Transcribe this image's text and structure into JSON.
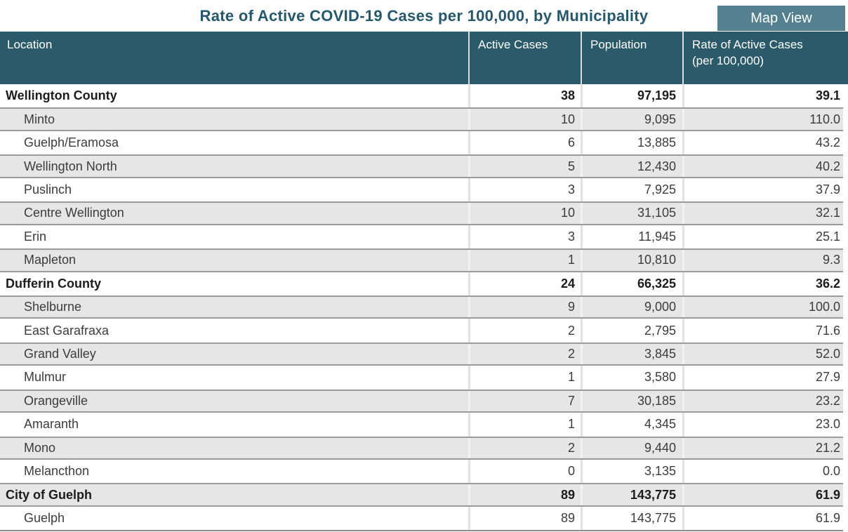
{
  "title": "Rate of Active COVID-19 Cases per 100,000, by Municipality",
  "toolbar": {
    "map_view_label": "Map View"
  },
  "colors": {
    "title_text": "#26586D",
    "header_bg": "#2B5A6B",
    "header_text": "#FFFFFF",
    "button_bg": "#54808F",
    "button_text": "#FFFFFF",
    "stripe_bg": "#E6E6E6",
    "stripe_border": "#9B9B9B",
    "table_bottom_border": "#8C8C8C"
  },
  "table": {
    "columns": [
      {
        "label": "Location"
      },
      {
        "label": "Active Cases"
      },
      {
        "label": "Population"
      },
      {
        "label": "Rate of Active Cases",
        "label_line2": "(per 100,000)"
      }
    ],
    "rows": [
      {
        "location": "Wellington County",
        "active_cases": "38",
        "population": "97,195",
        "rate": "39.1",
        "is_summary": true,
        "shaded": false
      },
      {
        "location": "Minto",
        "active_cases": "10",
        "population": "9,095",
        "rate": "110.0",
        "is_summary": false,
        "shaded": true
      },
      {
        "location": "Guelph/Eramosa",
        "active_cases": "6",
        "population": "13,885",
        "rate": "43.2",
        "is_summary": false,
        "shaded": false
      },
      {
        "location": "Wellington North",
        "active_cases": "5",
        "population": "12,430",
        "rate": "40.2",
        "is_summary": false,
        "shaded": true
      },
      {
        "location": "Puslinch",
        "active_cases": "3",
        "population": "7,925",
        "rate": "37.9",
        "is_summary": false,
        "shaded": false
      },
      {
        "location": "Centre Wellington",
        "active_cases": "10",
        "population": "31,105",
        "rate": "32.1",
        "is_summary": false,
        "shaded": true
      },
      {
        "location": "Erin",
        "active_cases": "3",
        "population": "11,945",
        "rate": "25.1",
        "is_summary": false,
        "shaded": false
      },
      {
        "location": "Mapleton",
        "active_cases": "1",
        "population": "10,810",
        "rate": "9.3",
        "is_summary": false,
        "shaded": true
      },
      {
        "location": "Dufferin County",
        "active_cases": "24",
        "population": "66,325",
        "rate": "36.2",
        "is_summary": true,
        "shaded": false
      },
      {
        "location": "Shelburne",
        "active_cases": "9",
        "population": "9,000",
        "rate": "100.0",
        "is_summary": false,
        "shaded": true
      },
      {
        "location": "East Garafraxa",
        "active_cases": "2",
        "population": "2,795",
        "rate": "71.6",
        "is_summary": false,
        "shaded": false
      },
      {
        "location": "Grand Valley",
        "active_cases": "2",
        "population": "3,845",
        "rate": "52.0",
        "is_summary": false,
        "shaded": true
      },
      {
        "location": "Mulmur",
        "active_cases": "1",
        "population": "3,580",
        "rate": "27.9",
        "is_summary": false,
        "shaded": false
      },
      {
        "location": "Orangeville",
        "active_cases": "7",
        "population": "30,185",
        "rate": "23.2",
        "is_summary": false,
        "shaded": true
      },
      {
        "location": "Amaranth",
        "active_cases": "1",
        "population": "4,345",
        "rate": "23.0",
        "is_summary": false,
        "shaded": false
      },
      {
        "location": "Mono",
        "active_cases": "2",
        "population": "9,440",
        "rate": "21.2",
        "is_summary": false,
        "shaded": true
      },
      {
        "location": "Melancthon",
        "active_cases": "0",
        "population": "3,135",
        "rate": "0.0",
        "is_summary": false,
        "shaded": false
      },
      {
        "location": "City of Guelph",
        "active_cases": "89",
        "population": "143,775",
        "rate": "61.9",
        "is_summary": true,
        "shaded": true
      },
      {
        "location": "Guelph",
        "active_cases": "89",
        "population": "143,775",
        "rate": "61.9",
        "is_summary": false,
        "shaded": false
      }
    ]
  }
}
